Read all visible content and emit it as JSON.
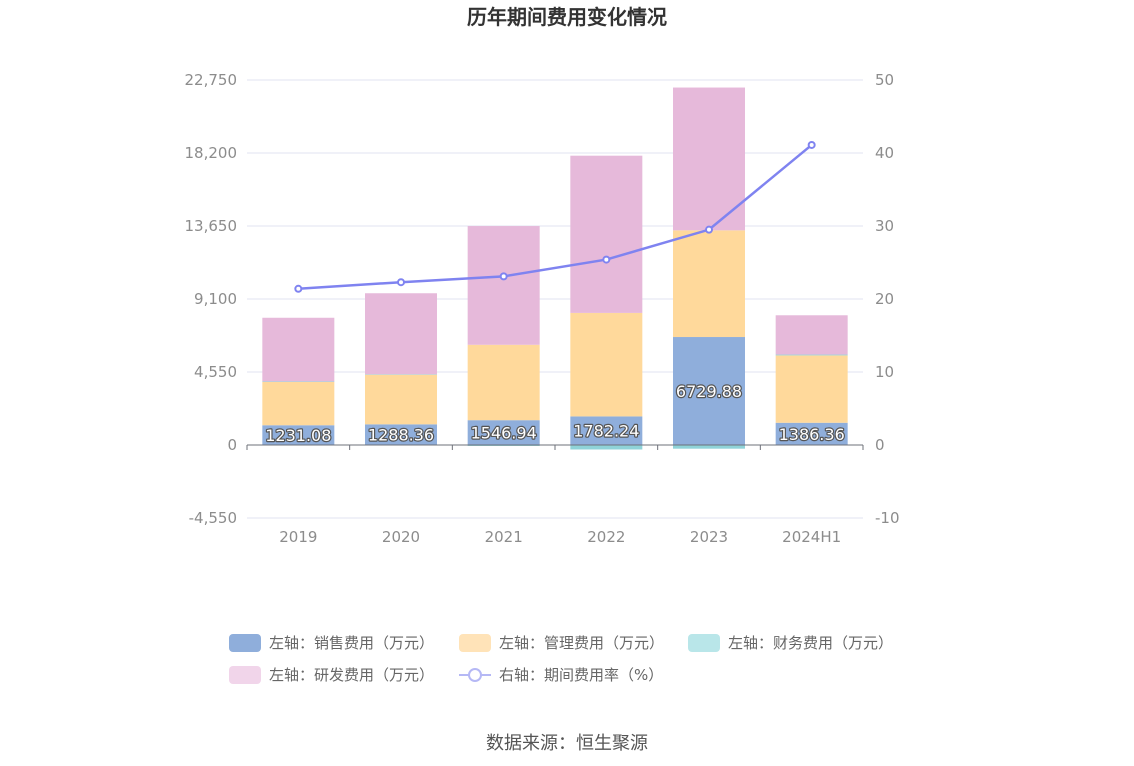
{
  "chart_data": {
    "type": "bar",
    "stacked": true,
    "title": "历年期间费用变化情况",
    "categories": [
      "2019",
      "2020",
      "2021",
      "2022",
      "2023",
      "2024H1"
    ],
    "left_axis": {
      "ylim": [
        -4550,
        22750
      ],
      "ticks": [
        -4550,
        0,
        4550,
        9100,
        13650,
        18200,
        22750
      ],
      "tick_labels": [
        "-4,550",
        "0",
        "4,550",
        "9,100",
        "13,650",
        "18,200",
        "22,750"
      ]
    },
    "right_axis": {
      "ylim": [
        -10,
        50
      ],
      "ticks": [
        -10,
        0,
        10,
        20,
        30,
        40,
        50
      ],
      "tick_labels": [
        "-10",
        "0",
        "10",
        "20",
        "30",
        "40",
        "50"
      ]
    },
    "series": [
      {
        "name": "左轴：销售费用（万元）",
        "type": "bar",
        "axis": "left",
        "color": "#8faedb",
        "values": [
          1231.08,
          1288.36,
          1546.94,
          1782.24,
          6729.88,
          1386.36
        ],
        "labels": [
          "1231.08",
          "1288.36",
          "1546.94",
          "1782.24",
          "6729.88",
          "1386.36"
        ]
      },
      {
        "name": "左轴：管理费用（万元）",
        "type": "bar",
        "axis": "left",
        "color": "#ffd99b",
        "values": [
          2700,
          3100,
          4700,
          6450,
          6650,
          4200
        ]
      },
      {
        "name": "左轴：财务费用（万元）",
        "type": "bar",
        "axis": "left",
        "color": "#8fd3d8",
        "values": [
          30,
          20,
          -60,
          -280,
          -230,
          50
        ]
      },
      {
        "name": "左轴：研发费用（万元）",
        "type": "bar",
        "axis": "left",
        "color": "#e6b9da",
        "values": [
          3970,
          5050,
          7400,
          9800,
          8900,
          2450
        ]
      },
      {
        "name": "右轴：期间费用率（%）",
        "type": "line",
        "axis": "right",
        "color": "#7f83f0",
        "values": [
          21.4,
          22.3,
          23.1,
          25.4,
          29.5,
          41.1
        ]
      }
    ]
  },
  "source": "数据来源：恒生聚源"
}
